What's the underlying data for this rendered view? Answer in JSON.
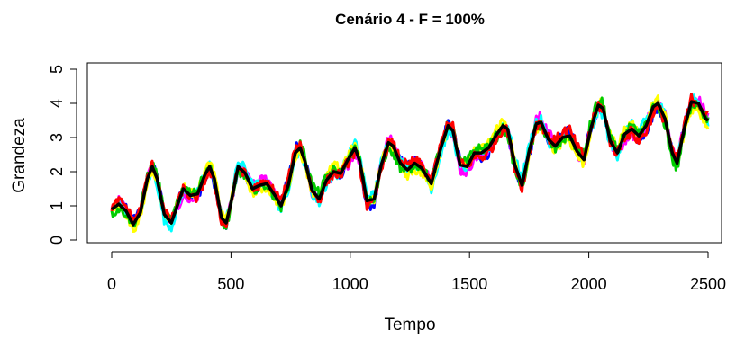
{
  "chart_data": {
    "type": "line",
    "title": "Cenário 4 - F = 100%",
    "xlabel": "Tempo",
    "ylabel": "Grandeza",
    "xlim": [
      0,
      2500
    ],
    "ylim": [
      0,
      5
    ],
    "xticks": [
      "0",
      "500",
      "1000",
      "1500",
      "2000",
      "2500"
    ],
    "yticks": [
      "0",
      "1",
      "2",
      "3",
      "4",
      "5"
    ],
    "grid": false,
    "legend": "none",
    "series_colors": [
      "#0000ff",
      "#ff00ff",
      "#00ffff",
      "#ffff00",
      "#00cc00",
      "#ff0000"
    ],
    "mean_color": "#000000",
    "mean_series": {
      "x": [
        0,
        30,
        60,
        90,
        120,
        150,
        170,
        190,
        220,
        250,
        280,
        300,
        330,
        360,
        390,
        410,
        430,
        460,
        480,
        500,
        530,
        560,
        590,
        620,
        650,
        680,
        710,
        740,
        770,
        790,
        810,
        840,
        870,
        900,
        930,
        960,
        990,
        1020,
        1040,
        1070,
        1100,
        1130,
        1160,
        1180,
        1210,
        1240,
        1270,
        1300,
        1340,
        1380,
        1410,
        1430,
        1460,
        1490,
        1520,
        1550,
        1580,
        1610,
        1640,
        1660,
        1690,
        1720,
        1750,
        1780,
        1800,
        1830,
        1860,
        1890,
        1920,
        1950,
        1980,
        2010,
        2040,
        2060,
        2090,
        2120,
        2150,
        2180,
        2210,
        2240,
        2270,
        2290,
        2320,
        2350,
        2370,
        2400,
        2430,
        2460,
        2490,
        2500
      ],
      "y": [
        0.9,
        1.05,
        0.85,
        0.45,
        0.8,
        1.8,
        2.15,
        1.8,
        0.75,
        0.5,
        1.1,
        1.5,
        1.3,
        1.35,
        1.9,
        2.15,
        1.8,
        0.65,
        0.5,
        1.1,
        2.15,
        1.95,
        1.5,
        1.6,
        1.65,
        1.35,
        1.0,
        1.6,
        2.55,
        2.7,
        2.3,
        1.45,
        1.2,
        1.75,
        2.0,
        1.95,
        2.35,
        2.7,
        2.3,
        1.15,
        1.2,
        2.2,
        2.85,
        2.75,
        2.25,
        2.05,
        2.25,
        2.1,
        1.65,
        2.7,
        3.35,
        3.2,
        2.2,
        2.15,
        2.55,
        2.55,
        2.7,
        3.05,
        3.35,
        3.25,
        2.2,
        1.6,
        2.6,
        3.4,
        3.45,
        2.95,
        2.75,
        3.0,
        3.05,
        2.6,
        2.35,
        3.3,
        3.95,
        3.85,
        2.9,
        2.55,
        3.1,
        3.25,
        3.05,
        3.35,
        3.9,
        4.0,
        3.55,
        2.55,
        2.25,
        3.25,
        4.05,
        4.0,
        3.55,
        3.5
      ]
    },
    "spread": {
      "x": [
        0,
        500,
        1000,
        1500,
        2000,
        2500
      ],
      "y": [
        0.25,
        0.25,
        0.3,
        0.3,
        0.35,
        0.35
      ]
    }
  }
}
